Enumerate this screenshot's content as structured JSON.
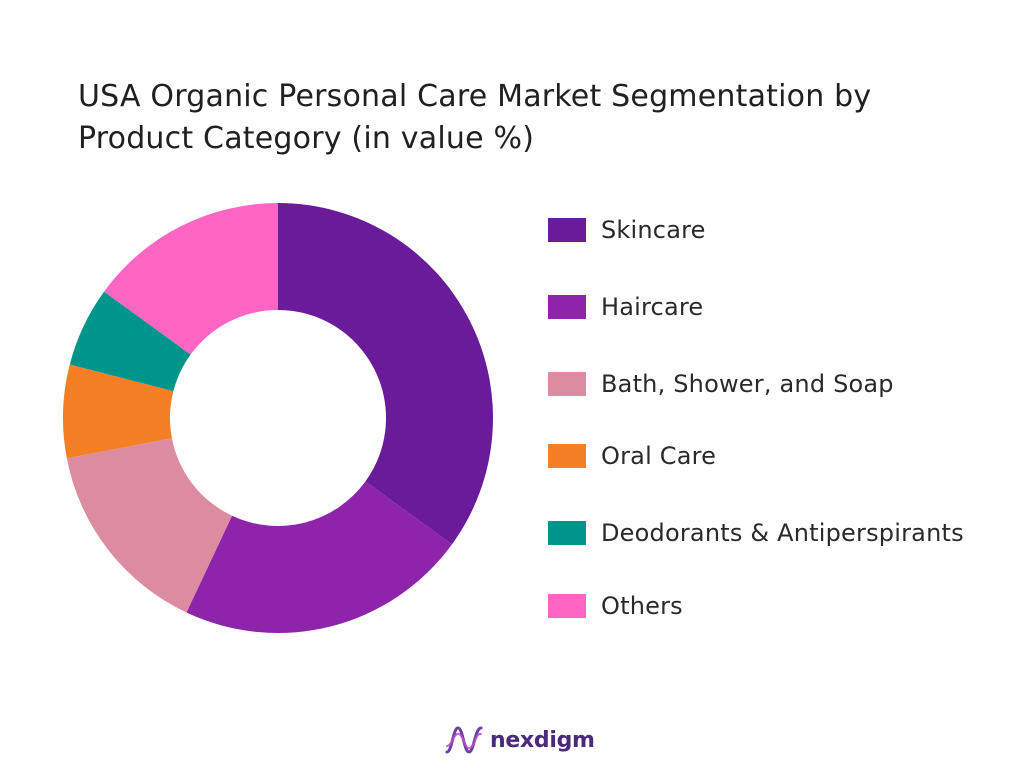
{
  "chart_data": {
    "type": "pie",
    "donut": true,
    "title_lines": [
      "USA Organic Personal Care Market Segmentation by",
      "Product Category (in value %)"
    ],
    "unit": "value %",
    "categories": [
      "Skincare",
      "Haircare",
      "Bath, Shower, and Soap",
      "Oral Care",
      "Deodorants & Antiperspirants",
      "Others"
    ],
    "values": [
      35,
      22,
      15,
      7,
      6,
      15
    ],
    "colors": [
      "#6a1b9a",
      "#8e24aa",
      "#dc8ca0",
      "#f47f24",
      "#00958a",
      "#ff66c4"
    ],
    "legend_position": "right"
  },
  "brand": {
    "name": "nexdigm",
    "logo_icon": "nexdigm-wave-logo-icon",
    "color": "#4a2a7a"
  }
}
